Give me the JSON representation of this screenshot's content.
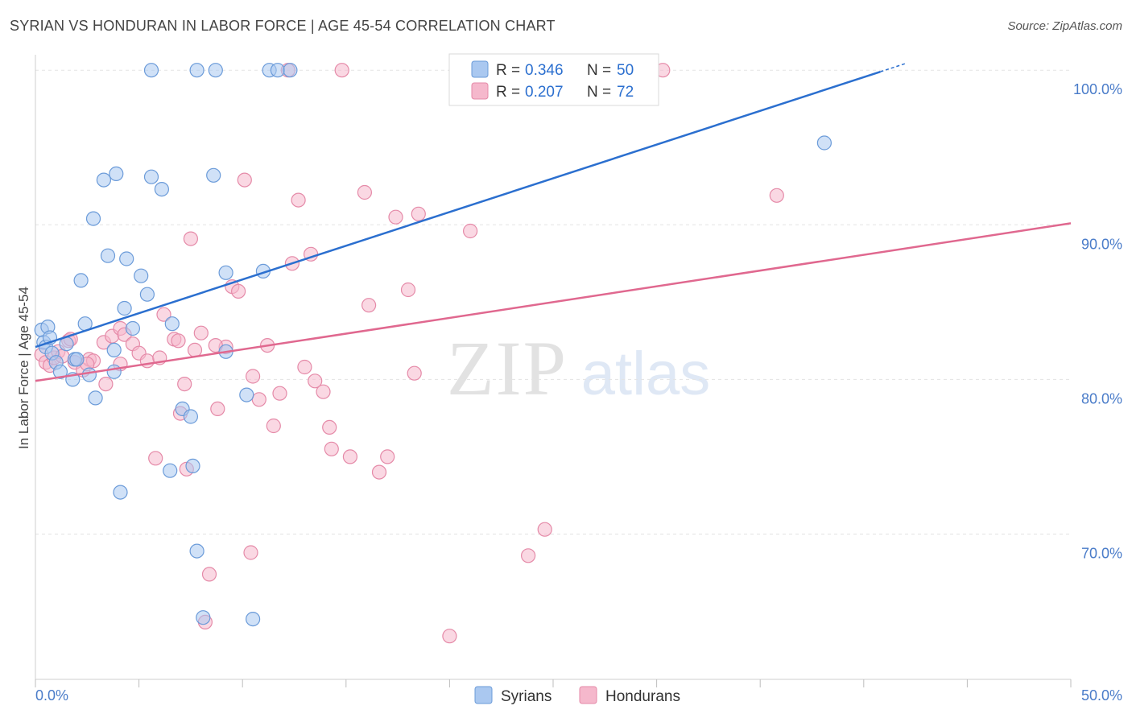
{
  "header": {
    "title": "SYRIAN VS HONDURAN IN LABOR FORCE | AGE 45-54 CORRELATION CHART",
    "source": "Source: ZipAtlas.com"
  },
  "watermark": {
    "zip": "ZIP",
    "atlas": "atlas"
  },
  "legend_top": {
    "rows": [
      {
        "r_label": "R = ",
        "r_value": "0.346",
        "n_label": "N = ",
        "n_value": "50"
      },
      {
        "r_label": "R = ",
        "r_value": "0.207",
        "n_label": "N = ",
        "n_value": "72"
      }
    ]
  },
  "colors": {
    "syrians_fill": "#aac8f0",
    "syrians_stroke": "#6b9bd9",
    "syrians_line": "#2b6fcf",
    "hondurans_fill": "#f5b8cc",
    "hondurans_stroke": "#e58aa8",
    "hondurans_line": "#e0688f",
    "value_text": "#2b6fcf",
    "tick_text": "#4a7cc9"
  },
  "chart_data": {
    "type": "scatter",
    "title": "SYRIAN VS HONDURAN IN LABOR FORCE | AGE 45-54 CORRELATION CHART",
    "xlabel": "",
    "ylabel": "In Labor Force | Age 45-54",
    "xlim": [
      0,
      50
    ],
    "ylim": [
      60.6,
      101
    ],
    "x_tick_labels": [
      "0.0%",
      "50.0%"
    ],
    "y_ticks": [
      70,
      80,
      90,
      100
    ],
    "y_tick_labels": [
      "70.0%",
      "80.0%",
      "90.0%",
      "100.0%"
    ],
    "grid": true,
    "legend_position": "bottom-center",
    "series": [
      {
        "name": "Syrians",
        "r": 0.346,
        "n": 50,
        "trend": {
          "x": [
            0,
            40.8
          ],
          "y": [
            82.1,
            99.9
          ]
        },
        "points": [
          [
            0.3,
            83.2
          ],
          [
            0.4,
            82.4
          ],
          [
            0.5,
            82.1
          ],
          [
            0.6,
            83.4
          ],
          [
            0.7,
            82.7
          ],
          [
            0.8,
            81.7
          ],
          [
            1.0,
            81.1
          ],
          [
            1.2,
            80.5
          ],
          [
            1.5,
            82.3
          ],
          [
            1.8,
            80.0
          ],
          [
            1.9,
            81.3
          ],
          [
            2.0,
            81.3
          ],
          [
            2.2,
            86.4
          ],
          [
            2.4,
            83.6
          ],
          [
            2.6,
            80.3
          ],
          [
            2.8,
            90.4
          ],
          [
            2.9,
            78.8
          ],
          [
            3.3,
            92.9
          ],
          [
            3.5,
            88.0
          ],
          [
            3.8,
            80.5
          ],
          [
            3.9,
            93.3
          ],
          [
            3.8,
            81.9
          ],
          [
            4.1,
            72.7
          ],
          [
            4.3,
            84.6
          ],
          [
            4.4,
            87.8
          ],
          [
            4.7,
            83.3
          ],
          [
            5.1,
            86.7
          ],
          [
            5.4,
            85.5
          ],
          [
            5.6,
            93.1
          ],
          [
            6.1,
            92.3
          ],
          [
            6.5,
            74.1
          ],
          [
            6.6,
            83.6
          ],
          [
            7.1,
            78.1
          ],
          [
            7.5,
            77.6
          ],
          [
            7.6,
            74.4
          ],
          [
            7.8,
            68.9
          ],
          [
            8.1,
            64.6
          ],
          [
            8.6,
            93.2
          ],
          [
            9.2,
            86.9
          ],
          [
            9.2,
            81.8
          ],
          [
            10.2,
            79.0
          ],
          [
            10.5,
            64.5
          ],
          [
            11.0,
            87.0
          ],
          [
            11.3,
            100.0
          ],
          [
            11.7,
            100.0
          ],
          [
            12.3,
            100.0
          ],
          [
            5.6,
            100.0
          ],
          [
            7.8,
            100.0
          ],
          [
            8.7,
            100.0
          ],
          [
            38.1,
            95.3
          ]
        ]
      },
      {
        "name": "Hondurans",
        "r": 0.207,
        "n": 72,
        "trend": {
          "x": [
            0,
            50
          ],
          "y": [
            79.9,
            90.1
          ]
        },
        "points": [
          [
            0.3,
            81.6
          ],
          [
            0.5,
            81.1
          ],
          [
            0.7,
            80.9
          ],
          [
            0.9,
            81.4
          ],
          [
            1.1,
            81.8
          ],
          [
            1.3,
            81.5
          ],
          [
            1.6,
            82.5
          ],
          [
            1.7,
            82.6
          ],
          [
            1.9,
            81.1
          ],
          [
            2.3,
            80.6
          ],
          [
            2.6,
            81.3
          ],
          [
            2.8,
            81.2
          ],
          [
            3.3,
            82.4
          ],
          [
            3.4,
            79.7
          ],
          [
            3.7,
            82.8
          ],
          [
            4.1,
            83.3
          ],
          [
            4.3,
            82.9
          ],
          [
            4.7,
            82.3
          ],
          [
            5.0,
            81.7
          ],
          [
            5.4,
            81.2
          ],
          [
            5.8,
            74.9
          ],
          [
            6.0,
            81.4
          ],
          [
            6.2,
            84.2
          ],
          [
            6.7,
            82.6
          ],
          [
            6.9,
            82.5
          ],
          [
            7.0,
            77.8
          ],
          [
            7.2,
            79.7
          ],
          [
            7.3,
            74.2
          ],
          [
            7.5,
            89.1
          ],
          [
            7.7,
            81.9
          ],
          [
            8.0,
            83.0
          ],
          [
            8.2,
            64.3
          ],
          [
            8.4,
            67.4
          ],
          [
            8.8,
            78.1
          ],
          [
            9.2,
            82.1
          ],
          [
            9.5,
            86.0
          ],
          [
            9.8,
            85.7
          ],
          [
            10.1,
            92.9
          ],
          [
            10.4,
            68.8
          ],
          [
            10.5,
            80.2
          ],
          [
            10.8,
            78.7
          ],
          [
            11.2,
            82.2
          ],
          [
            11.5,
            77.0
          ],
          [
            11.8,
            79.1
          ],
          [
            12.4,
            87.5
          ],
          [
            12.7,
            91.6
          ],
          [
            13.0,
            80.8
          ],
          [
            13.3,
            88.1
          ],
          [
            13.5,
            79.9
          ],
          [
            13.9,
            79.2
          ],
          [
            14.2,
            76.9
          ],
          [
            14.3,
            75.5
          ],
          [
            15.2,
            75.0
          ],
          [
            15.9,
            92.1
          ],
          [
            16.1,
            84.8
          ],
          [
            16.6,
            74.0
          ],
          [
            17.0,
            75.0
          ],
          [
            17.4,
            90.5
          ],
          [
            18.0,
            85.8
          ],
          [
            18.3,
            80.4
          ],
          [
            18.5,
            90.7
          ],
          [
            20.0,
            63.4
          ],
          [
            21.0,
            89.6
          ],
          [
            23.8,
            68.6
          ],
          [
            24.6,
            70.3
          ],
          [
            35.8,
            91.9
          ],
          [
            12.2,
            100.0
          ],
          [
            14.8,
            100.0
          ],
          [
            4.1,
            81.0
          ],
          [
            8.7,
            82.2
          ],
          [
            30.3,
            100.0
          ],
          [
            2.5,
            81.0
          ]
        ]
      }
    ]
  },
  "bottom_legend": {
    "items": [
      "Syrians",
      "Hondurans"
    ]
  }
}
